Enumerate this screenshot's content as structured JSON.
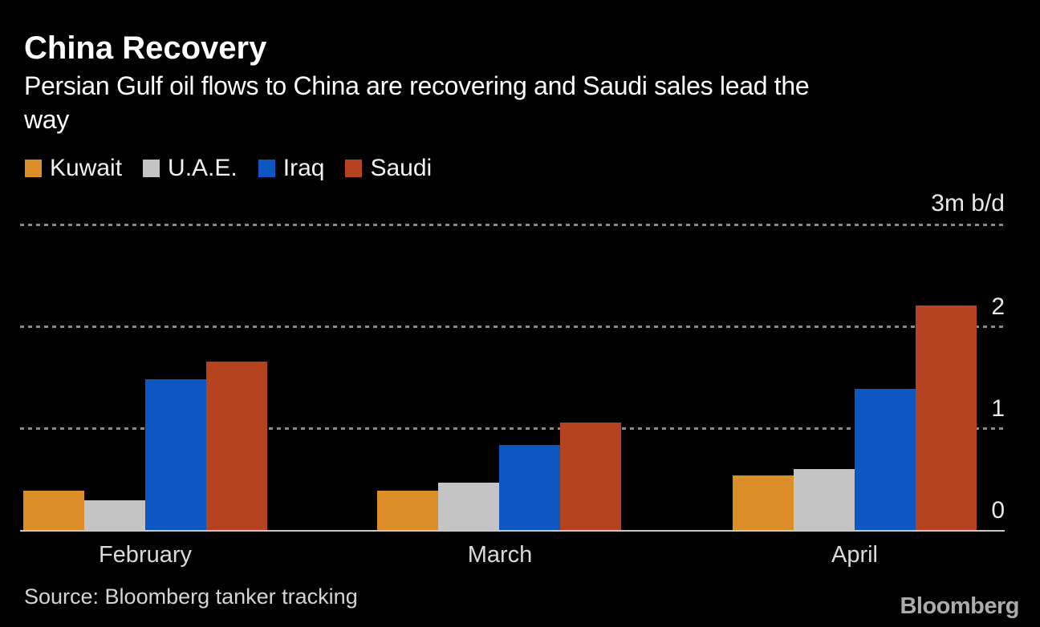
{
  "header": {
    "title": "China Recovery",
    "subtitle_lines": [
      "Persian Gulf oil flows to China are recovering and Saudi sales lead the",
      "way"
    ]
  },
  "legend": {
    "items": [
      {
        "label": "Kuwait",
        "color": "#DB8E28"
      },
      {
        "label": "U.A.E.",
        "color": "#C4C4C4"
      },
      {
        "label": "Iraq",
        "color": "#0E56C0"
      },
      {
        "label": "Saudi",
        "color": "#B5431F"
      }
    ]
  },
  "chart_data": {
    "type": "bar",
    "title": "China Recovery",
    "subtitle": "Persian Gulf oil flows to China are recovering and Saudi sales lead the way",
    "categories": [
      "February",
      "March",
      "April"
    ],
    "series": [
      {
        "name": "Kuwait",
        "color": "#DB8E28",
        "values": [
          0.39,
          0.39,
          0.54
        ]
      },
      {
        "name": "U.A.E.",
        "color": "#C4C4C4",
        "values": [
          0.3,
          0.47,
          0.61
        ]
      },
      {
        "name": "Iraq",
        "color": "#0E56C0",
        "values": [
          1.49,
          0.84,
          1.39
        ]
      },
      {
        "name": "Saudi",
        "color": "#B5431F",
        "values": [
          1.66,
          1.06,
          2.21
        ]
      }
    ],
    "unit_label": "3m b/d",
    "xlabel": "",
    "ylabel": "m b/d",
    "ylim": [
      0,
      3
    ],
    "y_ticks": [
      0,
      1,
      2
    ],
    "grid": "horizontal dotted",
    "axis_side": "right",
    "legend_position": "top-left"
  },
  "footer": {
    "source": "Source: Bloomberg tanker tracking",
    "brand": "Bloomberg"
  },
  "colors": {
    "background": "#000000",
    "title_text": "#FFFFFF",
    "legend_text": "#F2F2F2",
    "axis_text": "#E8E8E8",
    "month_text": "#DADADA",
    "gridline": "#8A8A8A",
    "baseline": "#C8C8C8",
    "source_text": "#D5D5D5",
    "brand_text": "#ACACAC"
  }
}
